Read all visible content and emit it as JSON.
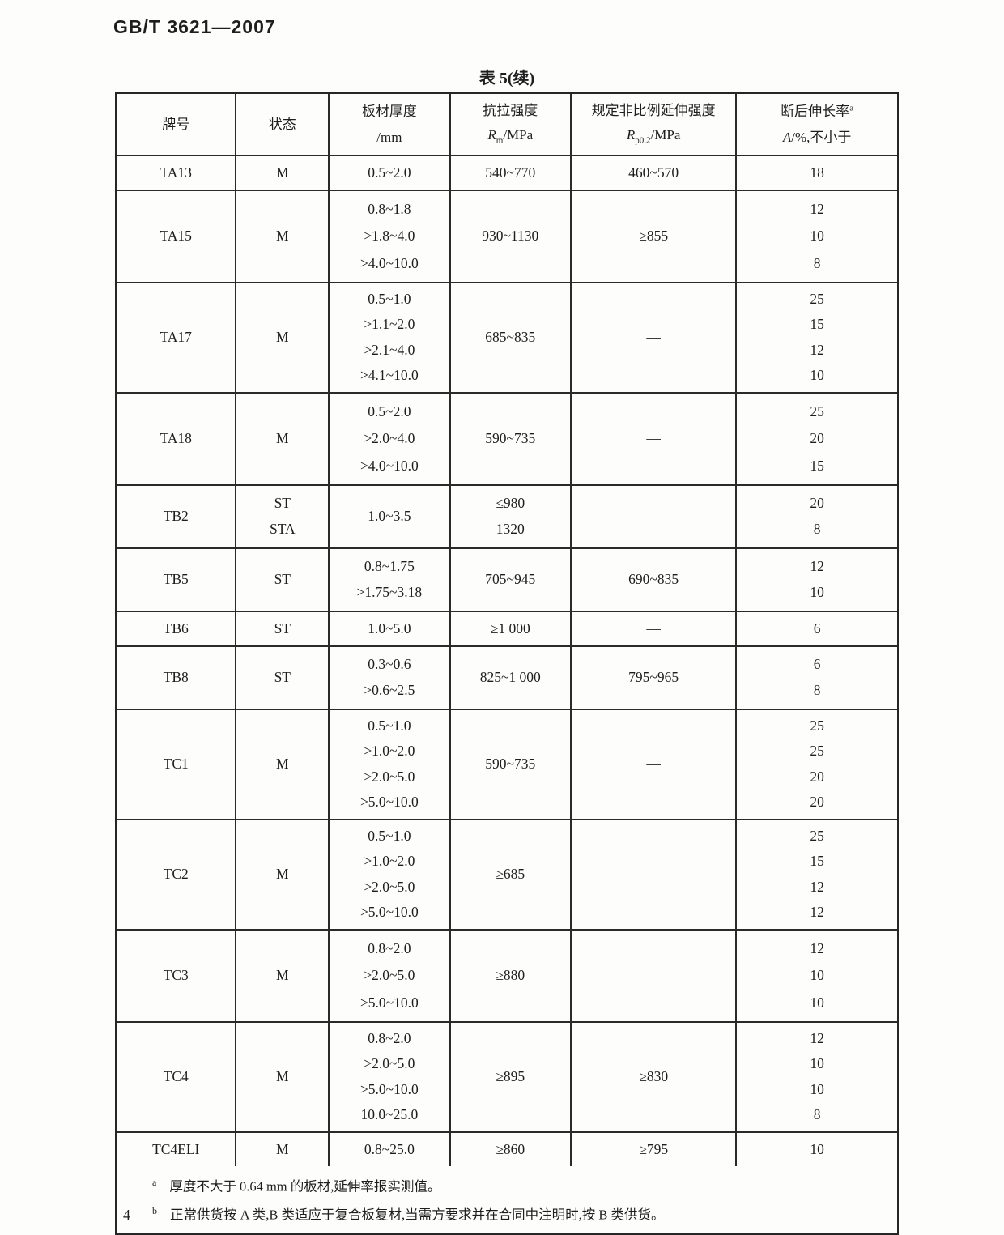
{
  "page": {
    "doc_number": "GB/T 3621—2007",
    "table_title": "表 5(续)",
    "page_number": "4"
  },
  "table": {
    "headers": {
      "col1": "牌号",
      "col2": "状态",
      "col3_line1": "板材厚度",
      "col3_line2": "/mm",
      "col4_line1": "抗拉强度",
      "col4_symbol": "R",
      "col4_sub": "m",
      "col4_unit": "/MPa",
      "col5_line1": "规定非比例延伸强度",
      "col5_symbol": "R",
      "col5_sub": "p0.2",
      "col5_unit": "/MPa",
      "col6_line1": "断后伸长率",
      "col6_sup": "a",
      "col6_symbol": "A",
      "col6_unit": "/%,不小于"
    },
    "rows": [
      {
        "grade": "TA13",
        "state": [
          "M"
        ],
        "thickness": [
          "0.5~2.0"
        ],
        "rm": [
          "540~770"
        ],
        "rp02": [
          "460~570"
        ],
        "elongation": [
          "18"
        ]
      },
      {
        "grade": "TA15",
        "state": [
          "M"
        ],
        "thickness": [
          "0.8~1.8",
          ">1.8~4.0",
          ">4.0~10.0"
        ],
        "rm": [
          "930~1130"
        ],
        "rp02": [
          "≥855"
        ],
        "elongation": [
          "12",
          "10",
          "8"
        ]
      },
      {
        "grade": "TA17",
        "state": [
          "M"
        ],
        "thickness": [
          "0.5~1.0",
          ">1.1~2.0",
          ">2.1~4.0",
          ">4.1~10.0"
        ],
        "rm": [
          "685~835"
        ],
        "rp02": [
          "—"
        ],
        "elongation": [
          "25",
          "15",
          "12",
          "10"
        ]
      },
      {
        "grade": "TA18",
        "state": [
          "M"
        ],
        "thickness": [
          "0.5~2.0",
          ">2.0~4.0",
          ">4.0~10.0"
        ],
        "rm": [
          "590~735"
        ],
        "rp02": [
          "—"
        ],
        "elongation": [
          "25",
          "20",
          "15"
        ]
      },
      {
        "grade": "TB2",
        "state": [
          "ST",
          "STA"
        ],
        "thickness": [
          "1.0~3.5"
        ],
        "rm": [
          "≤980",
          "1320"
        ],
        "rp02": [
          "—"
        ],
        "elongation": [
          "20",
          "8"
        ]
      },
      {
        "grade": "TB5",
        "state": [
          "ST"
        ],
        "thickness": [
          "0.8~1.75",
          ">1.75~3.18"
        ],
        "rm": [
          "705~945"
        ],
        "rp02": [
          "690~835"
        ],
        "elongation": [
          "12",
          "10"
        ]
      },
      {
        "grade": "TB6",
        "state": [
          "ST"
        ],
        "thickness": [
          "1.0~5.0"
        ],
        "rm": [
          "≥1 000"
        ],
        "rp02": [
          "—"
        ],
        "elongation": [
          "6"
        ]
      },
      {
        "grade": "TB8",
        "state": [
          "ST"
        ],
        "thickness": [
          "0.3~0.6",
          ">0.6~2.5"
        ],
        "rm": [
          "825~1 000"
        ],
        "rp02": [
          "795~965"
        ],
        "elongation": [
          "6",
          "8"
        ]
      },
      {
        "grade": "TC1",
        "state": [
          "M"
        ],
        "thickness": [
          "0.5~1.0",
          ">1.0~2.0",
          ">2.0~5.0",
          ">5.0~10.0"
        ],
        "rm": [
          "590~735"
        ],
        "rp02": [
          "—"
        ],
        "elongation": [
          "25",
          "25",
          "20",
          "20"
        ]
      },
      {
        "grade": "TC2",
        "state": [
          "M"
        ],
        "thickness": [
          "0.5~1.0",
          ">1.0~2.0",
          ">2.0~5.0",
          ">5.0~10.0"
        ],
        "rm": [
          "≥685"
        ],
        "rp02": [
          "—"
        ],
        "elongation": [
          "25",
          "15",
          "12",
          "12"
        ]
      },
      {
        "grade": "TC3",
        "state": [
          "M"
        ],
        "thickness": [
          "0.8~2.0",
          ">2.0~5.0",
          ">5.0~10.0"
        ],
        "rm": [
          "≥880"
        ],
        "rp02": [],
        "elongation": [
          "12",
          "10",
          "10"
        ]
      },
      {
        "grade": "TC4",
        "state": [
          "M"
        ],
        "thickness": [
          "0.8~2.0",
          ">2.0~5.0",
          ">5.0~10.0",
          "10.0~25.0"
        ],
        "rm": [
          "≥895"
        ],
        "rp02": [
          "≥830"
        ],
        "elongation": [
          "12",
          "10",
          "10",
          "8"
        ]
      },
      {
        "grade": "TC4ELI",
        "state": [
          "M"
        ],
        "thickness": [
          "0.8~25.0"
        ],
        "rm": [
          "≥860"
        ],
        "rp02": [
          "≥795"
        ],
        "elongation": [
          "10"
        ]
      }
    ],
    "footnotes": [
      {
        "marker": "a",
        "text": "厚度不大于 0.64 mm 的板材,延伸率报实测值。"
      },
      {
        "marker": "b",
        "text": "正常供货按 A 类,B 类适应于复合板复材,当需方要求并在合同中注明时,按 B 类供货。"
      }
    ]
  }
}
